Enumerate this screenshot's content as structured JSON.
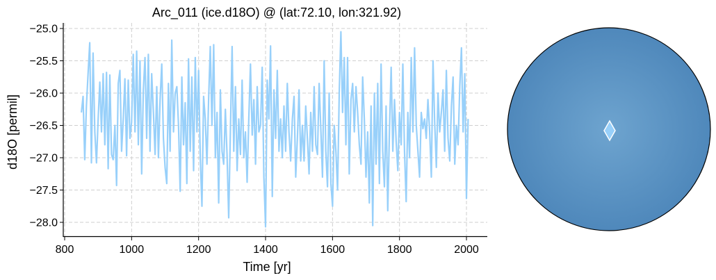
{
  "chart_data": {
    "type": "line",
    "title": "Arc_011 (ice.d18O) @ (lat:72.10, lon:321.92)",
    "xlabel": "Time [yr]",
    "ylabel": "d18O [permil]",
    "xlim": [
      800,
      2060
    ],
    "ylim": [
      -28.2,
      -24.9
    ],
    "xticks": [
      800,
      1000,
      1200,
      1400,
      1600,
      1800,
      2000
    ],
    "xtick_labels": [
      "800",
      "1000",
      "1200",
      "1400",
      "1600",
      "1800",
      "2000"
    ],
    "yticks": [
      -25.0,
      -25.5,
      -26.0,
      -26.5,
      -27.0,
      -27.5,
      -28.0
    ],
    "ytick_labels": [
      "−25.0",
      "−25.5",
      "−26.0",
      "−26.5",
      "−27.0",
      "−27.5",
      "−28.0"
    ],
    "grid": true,
    "series": [
      {
        "name": "ice.d18O",
        "color": "#98d0fa",
        "time_start": 850,
        "time_step": 5,
        "values": [
          -26.3,
          -26.05,
          -27.03,
          -26.2,
          -25.7,
          -25.22,
          -27.08,
          -25.38,
          -26.6,
          -27.08,
          -26.4,
          -25.83,
          -26.6,
          -25.7,
          -26.8,
          -25.68,
          -27.17,
          -25.72,
          -26.95,
          -27.03,
          -26.5,
          -27.43,
          -25.85,
          -25.65,
          -26.9,
          -26.4,
          -25.78,
          -26.97,
          -25.8,
          -26.7,
          -26.45,
          -25.4,
          -26.6,
          -25.35,
          -26.8,
          -25.5,
          -27.25,
          -25.95,
          -25.45,
          -26.7,
          -25.4,
          -26.9,
          -25.7,
          -26.3,
          -26.95,
          -25.9,
          -27.0,
          -26.1,
          -25.55,
          -26.7,
          -27.15,
          -27.4,
          -25.85,
          -26.9,
          -25.18,
          -26.6,
          -26.0,
          -25.9,
          -26.5,
          -27.52,
          -25.75,
          -26.8,
          -26.15,
          -27.4,
          -25.47,
          -26.9,
          -25.75,
          -27.2,
          -25.45,
          -26.6,
          -25.65,
          -27.0,
          -27.75,
          -26.05,
          -26.4,
          -27.1,
          -26.1,
          -25.28,
          -26.5,
          -25.25,
          -27.0,
          -26.3,
          -27.7,
          -25.95,
          -26.9,
          -27.1,
          -26.25,
          -26.95,
          -27.93,
          -26.6,
          -25.28,
          -26.9,
          -25.9,
          -27.2,
          -26.4,
          -26.95,
          -25.8,
          -27.0,
          -26.6,
          -27.38,
          -26.4,
          -25.55,
          -26.65,
          -26.1,
          -27.1,
          -25.9,
          -26.6,
          -26.5,
          -25.6,
          -27.3,
          -28.07,
          -25.8,
          -26.4,
          -25.27,
          -27.6,
          -25.95,
          -26.7,
          -25.65,
          -26.9,
          -26.4,
          -27.0,
          -26.2,
          -26.9,
          -25.85,
          -26.6,
          -27.05,
          -26.4,
          -26.05,
          -27.3,
          -26.7,
          -25.95,
          -27.05,
          -26.5,
          -27.05,
          -26.2,
          -26.7,
          -27.25,
          -26.3,
          -26.9,
          -25.9,
          -26.8,
          -26.95,
          -25.85,
          -26.55,
          -27.3,
          -25.5,
          -26.9,
          -27.45,
          -26.0,
          -27.4,
          -27.75,
          -26.5,
          -26.9,
          -27.5,
          -26.0,
          -25.05,
          -26.3,
          -25.45,
          -26.8,
          -25.45,
          -27.25,
          -26.1,
          -25.85,
          -26.6,
          -25.9,
          -26.3,
          -26.8,
          -27.1,
          -25.75,
          -26.4,
          -27.3,
          -26.6,
          -27.7,
          -26.2,
          -28.05,
          -26.0,
          -27.1,
          -25.85,
          -27.4,
          -25.55,
          -26.9,
          -27.45,
          -26.2,
          -27.82,
          -26.6,
          -25.6,
          -26.9,
          -26.1,
          -26.75,
          -27.2,
          -26.3,
          -26.8,
          -25.55,
          -26.9,
          -27.68,
          -26.3,
          -27.0,
          -25.45,
          -26.6,
          -25.3,
          -26.5,
          -26.9,
          -27.3,
          -26.3,
          -26.55,
          -26.4,
          -26.7,
          -26.1,
          -26.6,
          -27.3,
          -25.5,
          -26.45,
          -27.15,
          -26.0,
          -26.6,
          -26.3,
          -25.95,
          -26.9,
          -25.65,
          -26.7,
          -27.05,
          -26.2,
          -25.75,
          -27.1,
          -26.5,
          -26.8,
          -25.9,
          -25.3,
          -26.6,
          -25.7,
          -27.63,
          -26.4
        ]
      }
    ],
    "map": {
      "projection": "orthographic (north polar)",
      "site": {
        "lat": 72.1,
        "lon": 321.92,
        "marker": "diamond",
        "color": "#98d0fa"
      }
    }
  }
}
